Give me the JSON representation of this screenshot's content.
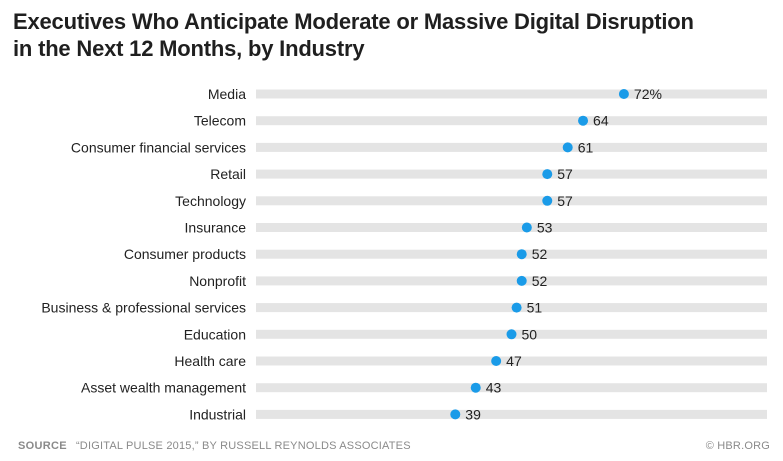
{
  "title_lines": [
    "Executives Who Anticipate Moderate or Massive Digital Disruption",
    "in the Next 12 Months, by Industry"
  ],
  "footer": {
    "source_label": "SOURCE",
    "source_text": "“DIGITAL PULSE 2015,” BY RUSSELL REYNOLDS ASSOCIATES",
    "credit": "© HBR.ORG"
  },
  "colors": {
    "dot": "#1a9be8",
    "track": "#e4e4e4",
    "label": "#222222"
  },
  "chart_data": {
    "type": "dot",
    "title": "Executives Who Anticipate Moderate or Massive Digital Disruption in the Next 12 Months, by Industry",
    "unit": "%",
    "xlim": [
      0,
      100
    ],
    "grid": false,
    "legend": "none",
    "categories": [
      "Media",
      "Telecom",
      "Consumer financial services",
      "Retail",
      "Technology",
      "Insurance",
      "Consumer products",
      "Nonprofit",
      "Business & professional services",
      "Education",
      "Health care",
      "Asset wealth management",
      "Industrial"
    ],
    "values": [
      72,
      64,
      61,
      57,
      57,
      53,
      52,
      52,
      51,
      50,
      47,
      43,
      39
    ],
    "value_labels": [
      "72%",
      "64",
      "61",
      "57",
      "57",
      "53",
      "52",
      "52",
      "51",
      "50",
      "47",
      "43",
      "39"
    ]
  }
}
